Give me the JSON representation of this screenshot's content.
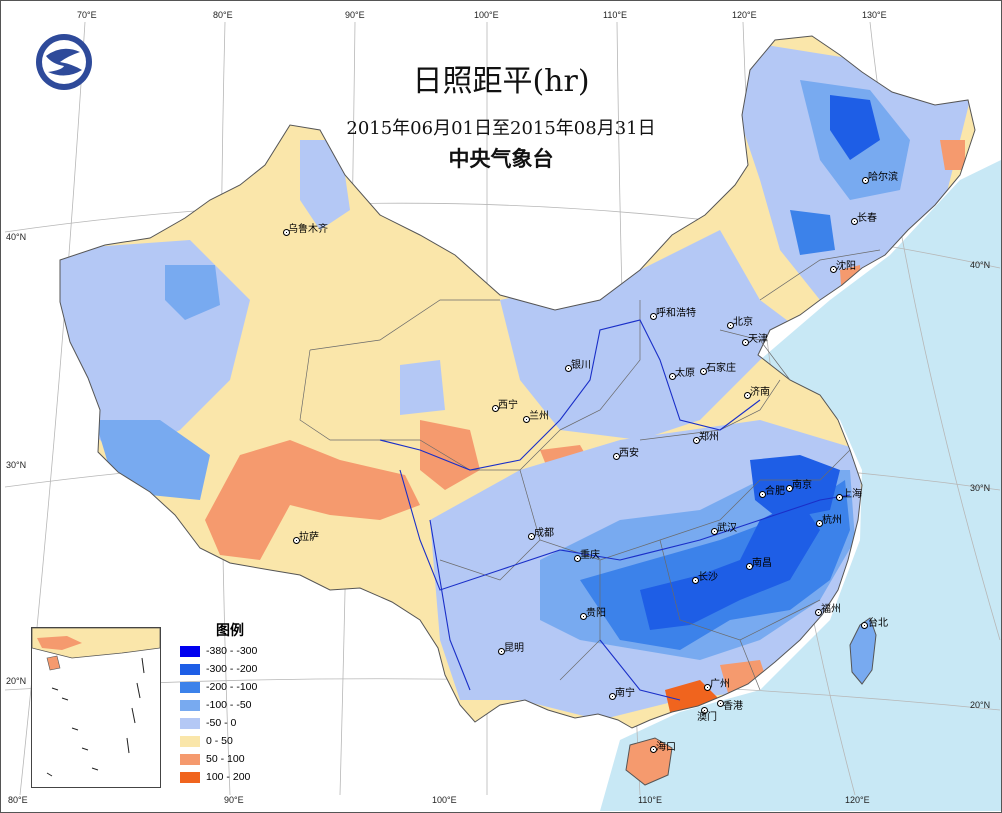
{
  "title": "日照距平(hr)",
  "date_range": "2015年06月01日至2015年08月31日",
  "organization": "中央气象台",
  "legend": {
    "title": "图例",
    "items": [
      {
        "label": "-380 - -300",
        "color": "#0000f0"
      },
      {
        "label": "-300 - -200",
        "color": "#1e5ee6"
      },
      {
        "label": "-200 - -100",
        "color": "#3c82ea"
      },
      {
        "label": "-100 - -50",
        "color": "#78aaf0"
      },
      {
        "label": "-50 - 0",
        "color": "#b4c8f5"
      },
      {
        "label": "0 - 50",
        "color": "#fae6aa"
      },
      {
        "label": "50 - 100",
        "color": "#f59a6e"
      },
      {
        "label": "100 - 200",
        "color": "#f0641e"
      }
    ]
  },
  "top_ticks": [
    "70°E",
    "80°E",
    "90°E",
    "100°E",
    "110°E",
    "120°E",
    "130°E"
  ],
  "bottom_ticks": [
    "80°E",
    "90°E",
    "100°E",
    "110°E",
    "120°E"
  ],
  "left_ticks": [
    "40°N",
    "30°N",
    "20°N"
  ],
  "right_ticks": [
    "40°N",
    "30°N",
    "20°N"
  ],
  "cities": [
    {
      "name": "乌鲁木齐"
    },
    {
      "name": "哈尔滨"
    },
    {
      "name": "长春"
    },
    {
      "name": "沈阳"
    },
    {
      "name": "呼和浩特"
    },
    {
      "name": "北京"
    },
    {
      "name": "天津"
    },
    {
      "name": "石家庄"
    },
    {
      "name": "太原"
    },
    {
      "name": "银川"
    },
    {
      "name": "济南"
    },
    {
      "name": "西宁"
    },
    {
      "name": "兰州"
    },
    {
      "name": "郑州"
    },
    {
      "name": "西安"
    },
    {
      "name": "南京"
    },
    {
      "name": "合肥"
    },
    {
      "name": "上海"
    },
    {
      "name": "杭州"
    },
    {
      "name": "拉萨"
    },
    {
      "name": "成都"
    },
    {
      "name": "武汉"
    },
    {
      "name": "重庆"
    },
    {
      "name": "南昌"
    },
    {
      "name": "长沙"
    },
    {
      "name": "福州"
    },
    {
      "name": "台北"
    },
    {
      "name": "贵阳"
    },
    {
      "name": "昆明"
    },
    {
      "name": "广州"
    },
    {
      "name": "南宁"
    },
    {
      "name": "澳门"
    },
    {
      "name": "香港"
    },
    {
      "name": "海口"
    }
  ]
}
